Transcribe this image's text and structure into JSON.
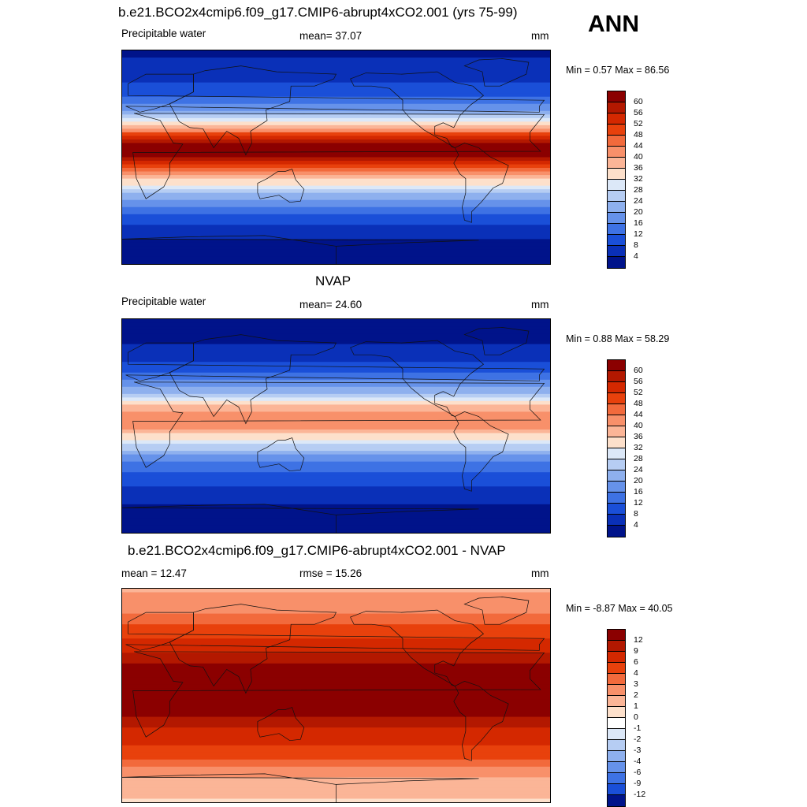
{
  "season": "ANN",
  "panels": [
    {
      "id": "model",
      "title": "b.e21.BCO2x4cmip6.f09_g17.CMIP6-abrupt4xCO2.001 (yrs 75-99)",
      "left_label": "Precipitable water",
      "center_label": "mean=  37.07",
      "units": "mm",
      "minmax": "Min =   0.57 Max =  86.56",
      "levels": [
        "60",
        "56",
        "52",
        "48",
        "44",
        "40",
        "36",
        "32",
        "28",
        "24",
        "20",
        "16",
        "12",
        "8",
        "4"
      ],
      "colors": [
        "#8b0000",
        "#b31800",
        "#d42800",
        "#e8410c",
        "#f26a3c",
        "#f8906a",
        "#fbb597",
        "#fde0cb",
        "#dce8f8",
        "#b6cdf3",
        "#8eb0ee",
        "#6692ea",
        "#3e72e4",
        "#1a4fd8",
        "#0a30b8",
        "#00138a"
      ],
      "lat_values": [
        -90,
        -70,
        -50,
        -30,
        -15,
        0,
        10,
        25,
        40,
        55,
        70,
        90
      ],
      "pw_values": [
        2,
        4,
        10,
        24,
        40,
        60,
        62,
        40,
        20,
        10,
        6,
        3
      ]
    },
    {
      "id": "obs",
      "title": "NVAP",
      "left_label": "Precipitable water",
      "center_label": "mean=  24.60",
      "units": "mm",
      "minmax": "Min =   0.88 Max =  58.29",
      "levels": [
        "60",
        "56",
        "52",
        "48",
        "44",
        "40",
        "36",
        "32",
        "28",
        "24",
        "20",
        "16",
        "12",
        "8",
        "4"
      ],
      "colors": [
        "#8b0000",
        "#b31800",
        "#d42800",
        "#e8410c",
        "#f26a3c",
        "#f8906a",
        "#fbb597",
        "#fde0cb",
        "#dce8f8",
        "#b6cdf3",
        "#8eb0ee",
        "#6692ea",
        "#3e72e4",
        "#1a4fd8",
        "#0a30b8",
        "#00138a"
      ],
      "lat_values": [
        -90,
        -70,
        -50,
        -30,
        -15,
        0,
        10,
        25,
        40,
        55,
        70,
        90
      ],
      "pw_values": [
        1,
        3,
        8,
        16,
        28,
        42,
        44,
        26,
        14,
        7,
        4,
        2
      ]
    },
    {
      "id": "diff",
      "title": "b.e21.BCO2x4cmip6.f09_g17.CMIP6-abrupt4xCO2.001 - NVAP",
      "left_label": "mean =  12.47",
      "center_label": "rmse =  15.26",
      "units": "mm",
      "minmax": "Min =  -8.87 Max =  40.05",
      "levels": [
        "12",
        "9",
        "6",
        "4",
        "3",
        "2",
        "1",
        "0",
        "-1",
        "-2",
        "-3",
        "-4",
        "-6",
        "-9",
        "-12"
      ],
      "colors": [
        "#8b0000",
        "#b31800",
        "#d42800",
        "#e8410c",
        "#f26a3c",
        "#f8906a",
        "#fbb597",
        "#fde0cb",
        "#ffffff",
        "#dce8f8",
        "#b6cdf3",
        "#8eb0ee",
        "#6692ea",
        "#3e72e4",
        "#1a4fd8",
        "#00138a"
      ],
      "lat_values": [
        -90,
        -70,
        -50,
        -30,
        -15,
        0,
        10,
        25,
        40,
        55,
        70,
        90
      ],
      "pw_values": [
        1,
        2,
        5,
        9,
        14,
        18,
        18,
        14,
        8,
        5,
        3,
        2
      ]
    }
  ]
}
